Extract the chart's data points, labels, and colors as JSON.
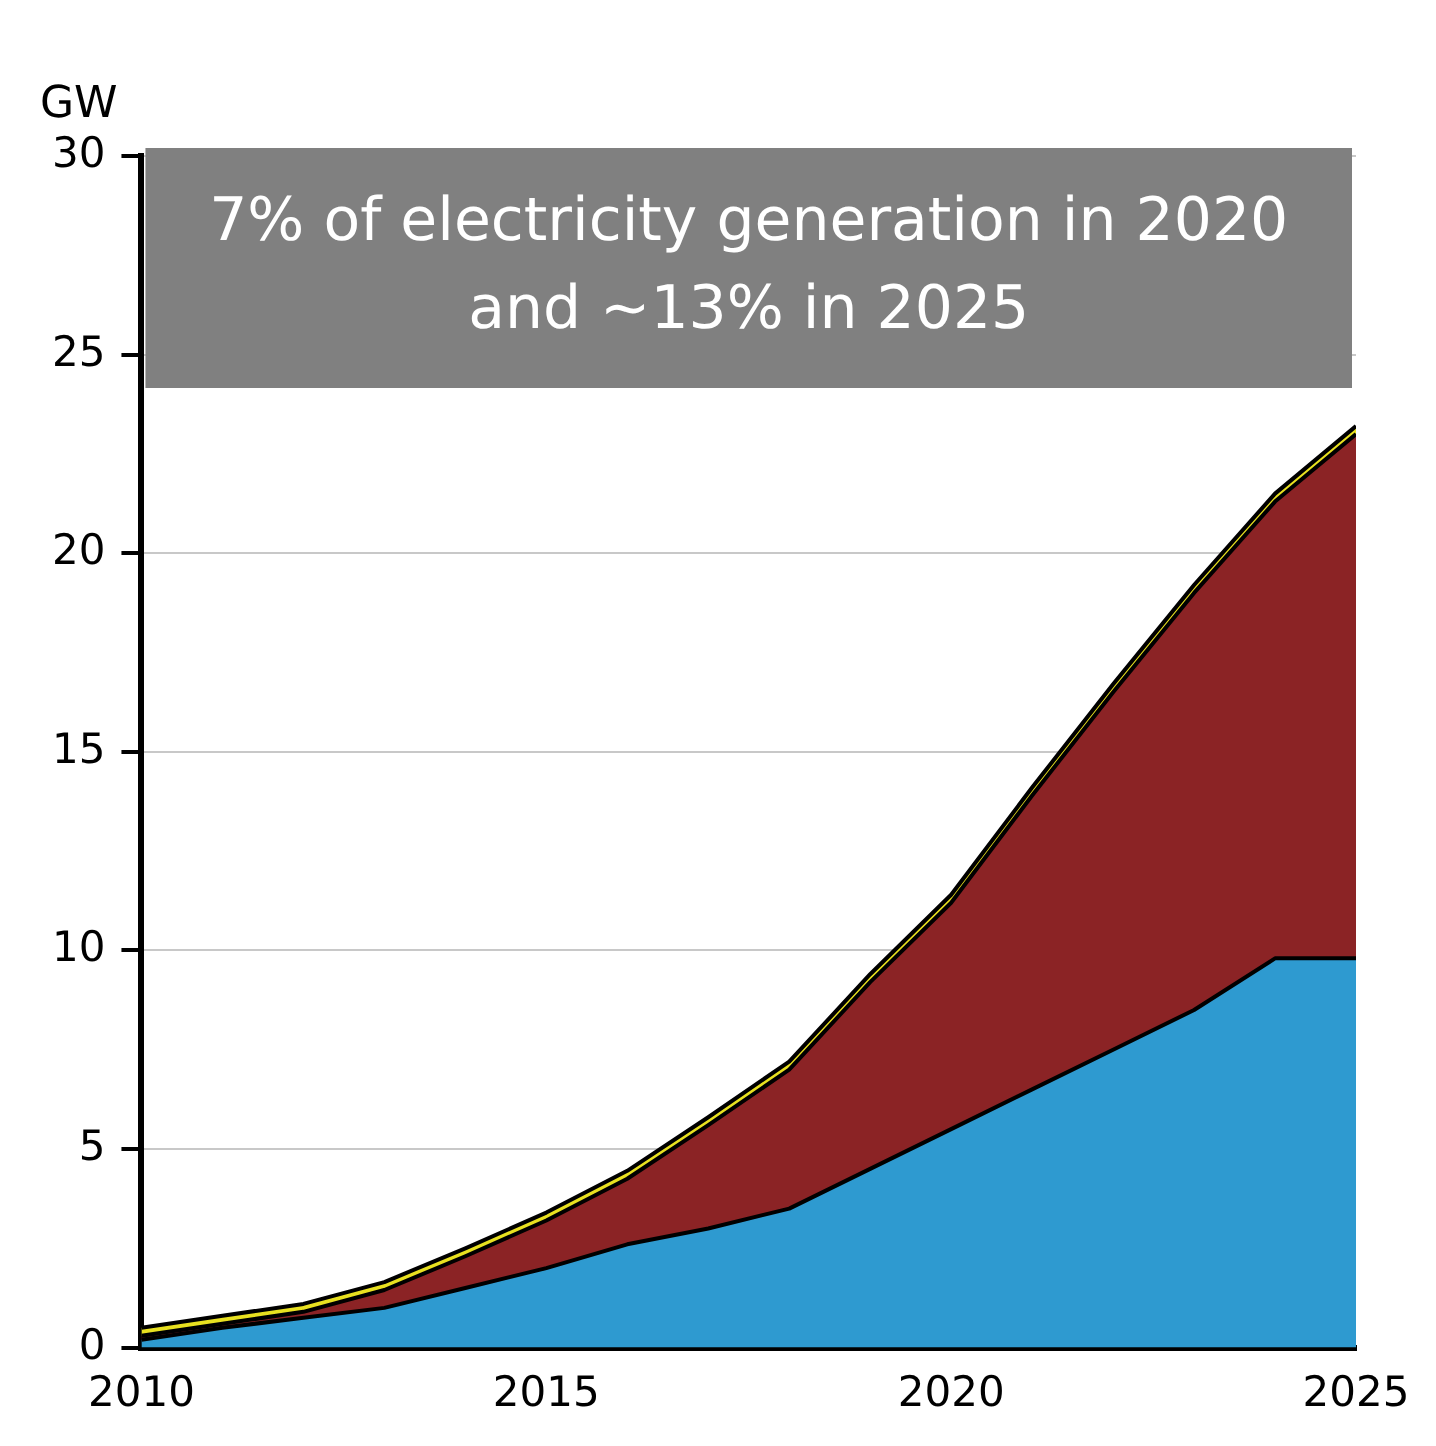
{
  "chart_data": {
    "type": "area",
    "stacked": true,
    "ylabel": "GW",
    "annotations": [
      "7% of electricity generation in 2020 and ~13% in 2025"
    ],
    "x": [
      2010,
      2011,
      2012,
      2013,
      2014,
      2015,
      2016,
      2017,
      2018,
      2019,
      2020,
      2021,
      2022,
      2023,
      2024,
      2025
    ],
    "series": [
      {
        "color": "#2e9ad0",
        "values": [
          0.2,
          0.5,
          0.75,
          1.0,
          1.5,
          2.0,
          2.6,
          3.0,
          3.5,
          4.5,
          5.5,
          6.5,
          7.5,
          8.5,
          9.8,
          9.8
        ]
      },
      {
        "color": "#8b2325",
        "values": [
          0.1,
          0.1,
          0.15,
          0.45,
          0.8,
          1.2,
          1.65,
          2.6,
          3.5,
          4.7,
          5.7,
          7.4,
          9.0,
          10.5,
          11.5,
          13.2
        ]
      },
      {
        "color": "#e8e020",
        "values": [
          0.2,
          0.2,
          0.2,
          0.2,
          0.2,
          0.2,
          0.2,
          0.2,
          0.2,
          0.2,
          0.2,
          0.2,
          0.2,
          0.2,
          0.2,
          0.2
        ]
      }
    ],
    "xlim": [
      2010,
      2025
    ],
    "xticks": [
      2010,
      2015,
      2020,
      2025
    ],
    "ylim": [
      0,
      30
    ],
    "yticks": [
      0,
      5,
      10,
      15,
      20,
      25,
      30
    ],
    "grid": "y",
    "legend": false
  }
}
